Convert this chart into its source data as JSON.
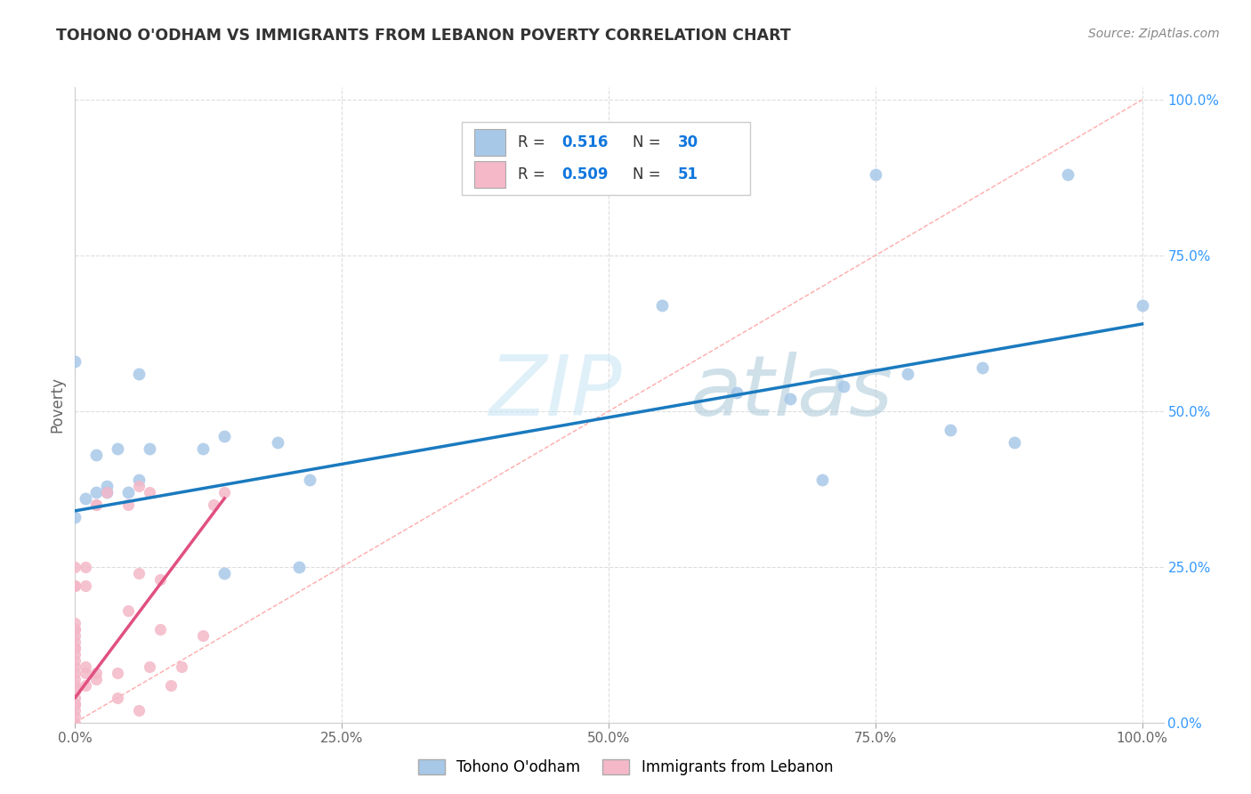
{
  "title": "TOHONO O'ODHAM VS IMMIGRANTS FROM LEBANON POVERTY CORRELATION CHART",
  "source": "Source: ZipAtlas.com",
  "ylabel": "Poverty",
  "x_tick_labels": [
    "0.0%",
    "25.0%",
    "50.0%",
    "75.0%",
    "100.0%"
  ],
  "x_tick_positions": [
    0.0,
    0.25,
    0.5,
    0.75,
    1.0
  ],
  "y_tick_labels": [
    "0.0%",
    "25.0%",
    "50.0%",
    "75.0%",
    "100.0%"
  ],
  "y_tick_positions": [
    0.0,
    0.25,
    0.5,
    0.75,
    1.0
  ],
  "blue_scatter_color": "#a8c8e8",
  "pink_scatter_color": "#f4b8c8",
  "blue_line_color": "#1a7abf",
  "pink_line_color": "#e05080",
  "diagonal_color": "#cccccc",
  "watermark_color": "#daeef8",
  "grid_color": "#dddddd",
  "background_color": "#ffffff",
  "title_color": "#333333",
  "source_color": "#888888",
  "ylabel_color": "#666666",
  "ytick_color": "#3399ff",
  "xtick_color": "#666666",
  "legend_text_color": "#333333",
  "legend_value_color": "#1177dd",
  "blue_scatter_x": [
    0.0,
    0.0,
    0.01,
    0.02,
    0.02,
    0.03,
    0.03,
    0.04,
    0.05,
    0.06,
    0.06,
    0.07,
    0.12,
    0.14,
    0.14,
    0.19,
    0.21,
    0.22,
    0.55,
    0.62,
    0.67,
    0.7,
    0.72,
    0.75,
    0.78,
    0.82,
    0.85,
    0.88,
    0.93,
    1.0
  ],
  "blue_scatter_y": [
    0.33,
    0.58,
    0.36,
    0.37,
    0.43,
    0.38,
    0.37,
    0.44,
    0.37,
    0.39,
    0.56,
    0.44,
    0.44,
    0.46,
    0.24,
    0.45,
    0.25,
    0.39,
    0.67,
    0.53,
    0.52,
    0.39,
    0.54,
    0.88,
    0.56,
    0.47,
    0.57,
    0.45,
    0.88,
    0.67
  ],
  "pink_scatter_x": [
    0.0,
    0.0,
    0.0,
    0.0,
    0.0,
    0.0,
    0.0,
    0.0,
    0.0,
    0.0,
    0.0,
    0.0,
    0.0,
    0.0,
    0.0,
    0.0,
    0.0,
    0.0,
    0.0,
    0.0,
    0.01,
    0.01,
    0.01,
    0.01,
    0.01,
    0.02,
    0.02,
    0.02,
    0.03,
    0.04,
    0.04,
    0.05,
    0.05,
    0.06,
    0.06,
    0.07,
    0.07,
    0.08,
    0.08,
    0.09,
    0.1,
    0.12,
    0.13,
    0.14,
    0.06,
    0.02,
    0.0,
    0.0,
    0.0,
    0.0,
    0.0
  ],
  "pink_scatter_y": [
    0.0,
    0.01,
    0.02,
    0.03,
    0.04,
    0.05,
    0.06,
    0.07,
    0.08,
    0.09,
    0.1,
    0.11,
    0.12,
    0.13,
    0.14,
    0.15,
    0.16,
    0.22,
    0.25,
    0.03,
    0.08,
    0.09,
    0.22,
    0.25,
    0.06,
    0.07,
    0.08,
    0.35,
    0.37,
    0.04,
    0.08,
    0.18,
    0.35,
    0.02,
    0.24,
    0.09,
    0.37,
    0.15,
    0.23,
    0.06,
    0.09,
    0.14,
    0.35,
    0.37,
    0.38,
    0.35,
    0.22,
    0.15,
    0.12,
    0.06,
    0.03
  ],
  "blue_trend_x": [
    0.0,
    1.0
  ],
  "blue_trend_y": [
    0.34,
    0.64
  ],
  "pink_trend_x": [
    0.0,
    0.14
  ],
  "pink_trend_y": [
    0.04,
    0.36
  ]
}
